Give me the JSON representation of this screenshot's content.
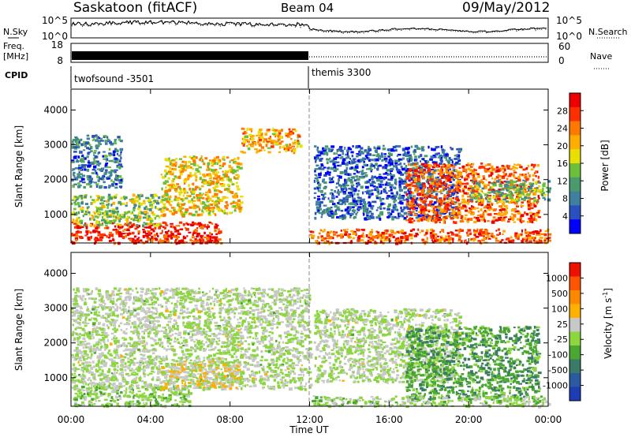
{
  "header": {
    "site": "Saskatoon (fitACF)",
    "beam": "Beam 04",
    "date": "09/May/2012"
  },
  "strip": {
    "nsky_label": "N.Sky",
    "nsky_ticks": [
      "10^5",
      "10^0"
    ],
    "nsearch_label": "N.Search",
    "nsearch_ticks": [
      "10^5",
      "10^0"
    ],
    "freq_label": "Freq.",
    "freq_unit": "[MHz]",
    "freq_ticks": [
      "18",
      "8"
    ],
    "nave_label": "Nave",
    "nave_ticks": [
      "60",
      "0"
    ],
    "cpid_label": "CPID",
    "cpid_segments": [
      {
        "label": "twofsound -3501",
        "start_hour": 0,
        "end_hour": 12
      },
      {
        "label": "themis 3300",
        "start_hour": 12,
        "end_hour": 24
      }
    ]
  },
  "xaxis": {
    "label": "Time UT",
    "tick_hours": [
      0,
      4,
      8,
      12,
      16,
      20,
      24
    ],
    "tick_labels": [
      "00:00",
      "04:00",
      "08:00",
      "12:00",
      "16:00",
      "20:00",
      "00:00"
    ],
    "range_hours": [
      0,
      24
    ]
  },
  "chart_data": [
    {
      "type": "heatmap",
      "title": "",
      "xlabel": "Time UT",
      "ylabel": "Slant Range [km]",
      "ylim": [
        180,
        4600
      ],
      "yticks": [
        1000,
        2000,
        3000,
        4000
      ],
      "colorbar": {
        "label": "Power [dB]",
        "ticks": [
          "28",
          "24",
          "20",
          "16",
          "12",
          "8",
          "4"
        ],
        "range": [
          0,
          30
        ],
        "colors": [
          "#0000ff",
          "#2a4fc0",
          "#3f7fa0",
          "#4a9a6e",
          "#6cbf3a",
          "#e8e000",
          "#ffae00",
          "#ff7800",
          "#ff3000",
          "#ee0000"
        ]
      },
      "regions": [
        {
          "name": "pre-noon near range echoes",
          "t": [
            0,
            7.5
          ],
          "r": [
            200,
            800
          ],
          "value": 27
        },
        {
          "name": "pre-noon mid range echoes",
          "t": [
            0,
            4.5
          ],
          "r": [
            700,
            1600
          ],
          "value": 14
        },
        {
          "name": "morning arc",
          "t": [
            4.5,
            8.5
          ],
          "r": [
            1000,
            2700
          ],
          "value": 18
        },
        {
          "name": "noon far range band",
          "t": [
            8.5,
            11.5
          ],
          "r": [
            2800,
            3500
          ],
          "value": 20
        },
        {
          "name": "early scattered echoes",
          "t": [
            0,
            2.5
          ],
          "r": [
            1800,
            3300
          ],
          "value": 8
        },
        {
          "name": "afternoon descending band",
          "t": [
            12.2,
            19.5
          ],
          "r": [
            900,
            3000
          ],
          "value": 6
        },
        {
          "name": "afternoon near range band",
          "t": [
            12,
            24
          ],
          "r": [
            200,
            600
          ],
          "value": 24
        },
        {
          "name": "evening echoes",
          "t": [
            16.8,
            23.5
          ],
          "r": [
            800,
            2500
          ],
          "value": 24
        },
        {
          "name": "late night band",
          "t": [
            20,
            24
          ],
          "r": [
            1400,
            2000
          ],
          "value": 12
        }
      ]
    },
    {
      "type": "heatmap",
      "title": "",
      "xlabel": "Time UT",
      "ylabel": "Slant Range [km]",
      "ylim": [
        180,
        4600
      ],
      "yticks": [
        1000,
        2000,
        3000,
        4000
      ],
      "colorbar": {
        "label": "Velocity [m s^-1]",
        "ticks": [
          "1000",
          "500",
          "100",
          "25",
          "-25",
          "-100",
          "-500",
          "-1000"
        ],
        "range": [
          -1200,
          1200
        ],
        "colors": [
          "#1e3cb4",
          "#2a5aa0",
          "#3a7a66",
          "#4aa830",
          "#8cd640",
          "#c8c8c8",
          "#ffb000",
          "#ff8800",
          "#ff5500",
          "#ee1100"
        ]
      },
      "regions": [
        {
          "name": "morning near range flow",
          "t": [
            0,
            6
          ],
          "r": [
            200,
            800
          ],
          "value": -150
        },
        {
          "name": "ground scatter",
          "t": [
            0,
            12
          ],
          "r": [
            700,
            3600
          ],
          "value": 0
        },
        {
          "name": "morning arc flow",
          "t": [
            4.5,
            8.5
          ],
          "r": [
            700,
            1500
          ],
          "value": 150
        },
        {
          "name": "afternoon ground scatter",
          "t": [
            12.2,
            19.5
          ],
          "r": [
            900,
            3000
          ],
          "value": 0
        },
        {
          "name": "evening negative flow",
          "t": [
            16.8,
            23.5
          ],
          "r": [
            400,
            2500
          ],
          "value": -400
        },
        {
          "name": "late near range flow",
          "t": [
            12,
            24
          ],
          "r": [
            200,
            500
          ],
          "value": -100
        }
      ]
    }
  ]
}
